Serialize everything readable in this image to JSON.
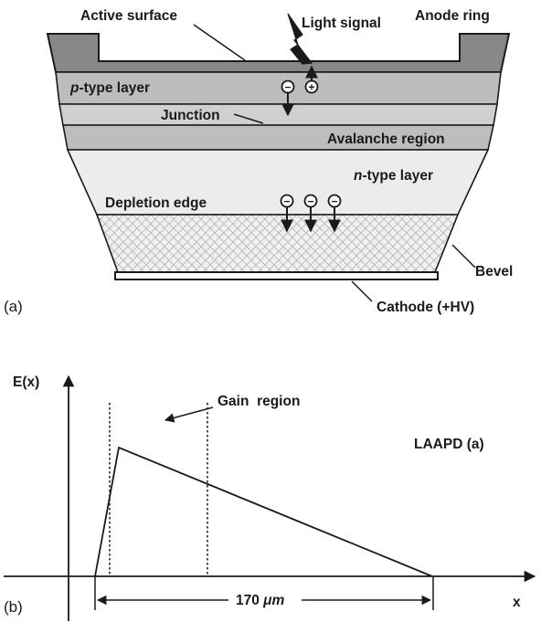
{
  "panel_a": {
    "letter": "(a)",
    "labels": {
      "active_surface": "Active surface",
      "light_signal": "Light signal",
      "anode_ring": "Anode ring",
      "p_type_italic": "p",
      "p_type_rest": "-type layer",
      "junction": "Junction",
      "avalanche": "Avalanche region",
      "n_type_italic": "n",
      "n_type_rest": "-type layer",
      "depletion_edge": "Depletion edge",
      "bevel": "Bevel",
      "cathode": "Cathode (+HV)"
    },
    "charges": {
      "electron": "−",
      "hole": "+"
    },
    "colors": {
      "anode_ring": "#888888",
      "p_layer": "#bdbdbd",
      "junction_layer": "#d0d0d0",
      "avalanche_layer": "#bdbdbd",
      "n_layer": "#ececec",
      "hatch_bg": "#f0f0f0",
      "hatch_line": "#b5b5b5",
      "outline": "#1a1a1a"
    }
  },
  "panel_b": {
    "letter": "(b)",
    "y_axis_label": "E(x)",
    "x_axis_label": "x",
    "gain_region_label": "Gain  region",
    "device_label": "LAAPD (a)",
    "width_label_number": "170 ",
    "width_label_unit": "μm"
  }
}
